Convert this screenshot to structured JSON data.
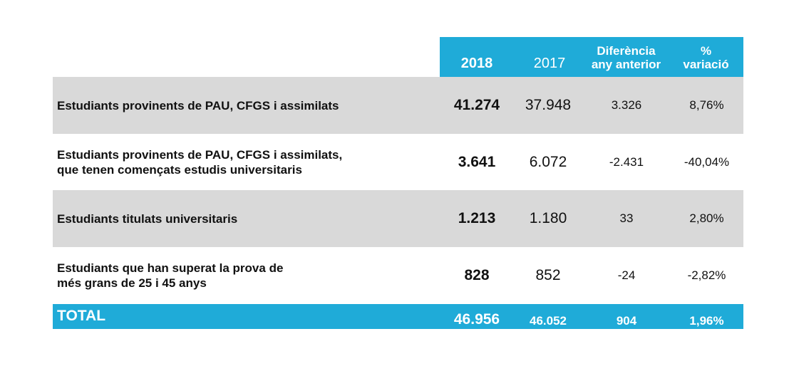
{
  "header": {
    "col_2018": "2018",
    "col_2017": "2017",
    "col_diff": "Diferència\nany anterior",
    "col_pct": "%\nvariació"
  },
  "rows": [
    {
      "label": "Estudiants provinents de PAU, CFGS i assimilats",
      "v2018": "41.274",
      "v2017": "37.948",
      "diff": "3.326",
      "pct": "8,76%"
    },
    {
      "label": "Estudiants provinents de PAU, CFGS i assimilats,\nque tenen començats estudis universitaris",
      "v2018": "3.641",
      "v2017": "6.072",
      "diff": "-2.431",
      "pct": "-40,04%"
    },
    {
      "label": "Estudiants titulats universitaris",
      "v2018": "1.213",
      "v2017": "1.180",
      "diff": "33",
      "pct": "2,80%"
    },
    {
      "label": "Estudiants que han superat la prova de\nmés grans de 25 i 45 anys",
      "v2018": "828",
      "v2017": "852",
      "diff": "-24",
      "pct": "-2,82%"
    }
  ],
  "total": {
    "label": "TOTAL",
    "v2018": "46.956",
    "v2017": "46.052",
    "diff": "904",
    "pct": "1,96%"
  },
  "colors": {
    "accent": "#1fabd8",
    "row_gray": "#d9d9d9"
  }
}
